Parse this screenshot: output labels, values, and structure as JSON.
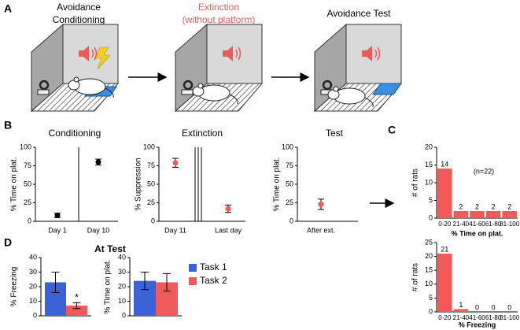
{
  "panel_labels": [
    "A",
    "B",
    "C",
    "D"
  ],
  "panel_a": {
    "steps": [
      {
        "title": [
          "Avoidance",
          "Conditioning"
        ]
      },
      {
        "title": [
          "Extinction",
          "(without platform)"
        ]
      },
      {
        "title": [
          "Avoidance Test"
        ]
      }
    ]
  },
  "chart_data": [
    {
      "type": "dot",
      "title": "Conditioning",
      "ylabel": "% Time on plat.",
      "categories": [
        "Day 1",
        "Day 10"
      ],
      "values": [
        8,
        80
      ],
      "errors": [
        3,
        4
      ],
      "color": "#000000",
      "ylim": [
        0,
        100
      ],
      "yticks": [
        0,
        25,
        50,
        75,
        100
      ]
    },
    {
      "type": "dot",
      "title": "Extinction",
      "ylabel": "% Suppression",
      "categories": [
        "Day 11",
        "Last day"
      ],
      "values": [
        79,
        17
      ],
      "errors": [
        6,
        5
      ],
      "color": "#f05a5a",
      "ylim": [
        0,
        100
      ],
      "yticks": [
        0,
        25,
        50,
        75,
        100
      ]
    },
    {
      "type": "dot",
      "title": "Test",
      "ylabel": "% Time on plat.",
      "categories": [
        "After ext."
      ],
      "values": [
        23
      ],
      "errors": [
        7
      ],
      "color": "#f05a5a",
      "ylim": [
        0,
        100
      ],
      "yticks": [
        0,
        25,
        50,
        75,
        100
      ]
    },
    {
      "type": "bar",
      "ylabel": "# of rats",
      "xlabel": "% Time on plat.",
      "annotation": "(n=22)",
      "categories": [
        "0-20",
        "21-40",
        "41-60",
        "61-80",
        "81-100"
      ],
      "values": [
        14,
        2,
        2,
        2,
        2
      ],
      "color": "#f05a5a",
      "ylim": [
        0,
        20
      ],
      "yticks": [
        0,
        5,
        10,
        15,
        20
      ]
    },
    {
      "type": "bar",
      "ylabel": "# of rats",
      "xlabel": "% Freezing",
      "categories": [
        "0-20",
        "21-40",
        "41-60",
        "61-80",
        "81-100"
      ],
      "values": [
        21,
        1,
        0,
        0,
        0
      ],
      "color": "#f05a5a",
      "ylim": [
        0,
        25
      ],
      "yticks": [
        0,
        5,
        10,
        15,
        20,
        25
      ]
    },
    {
      "type": "grouped-bar",
      "title": "At Test",
      "ylabels": [
        "% Freezing",
        "% Time on plat."
      ],
      "annotation": "*",
      "series": [
        {
          "name": "Task 1",
          "color": "#3c62d8",
          "values": [
            23,
            24
          ],
          "errors": [
            7,
            6
          ]
        },
        {
          "name": "Task 2",
          "color": "#f05a5a",
          "values": [
            7,
            23
          ],
          "errors": [
            2,
            6
          ]
        }
      ],
      "ylim": [
        0,
        40
      ],
      "yticks": [
        0,
        10,
        20,
        30,
        40
      ]
    }
  ]
}
